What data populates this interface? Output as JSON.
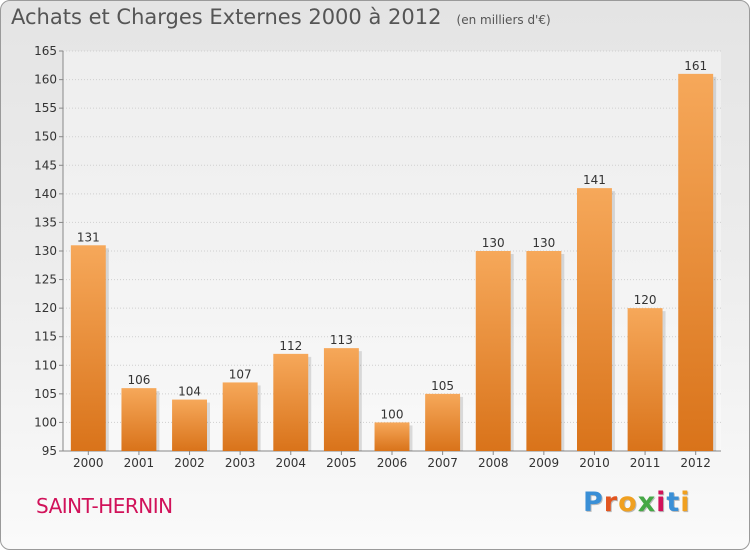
{
  "title": "Achats et Charges Externes 2000 à 2012",
  "unit_note": "(en milliers d'€)",
  "commune": "SAINT-HERNIN",
  "logo": {
    "text": "Proxiti",
    "letter_colors": [
      "#3a8fd6",
      "#e2551f",
      "#f0a020",
      "#46a846",
      "#d1125a",
      "#3a8fd6",
      "#f0a020"
    ]
  },
  "chart_data": {
    "type": "bar",
    "categories": [
      "2000",
      "2001",
      "2002",
      "2003",
      "2004",
      "2005",
      "2006",
      "2007",
      "2008",
      "2009",
      "2010",
      "2011",
      "2012"
    ],
    "values": [
      131,
      106,
      104,
      107,
      112,
      113,
      100,
      105,
      130,
      130,
      141,
      120,
      161
    ],
    "ylim": [
      95,
      165
    ],
    "yticks": [
      95,
      100,
      105,
      110,
      115,
      120,
      125,
      130,
      135,
      140,
      145,
      150,
      155,
      160,
      165
    ],
    "grid": true,
    "bar_color_top": "#f6a85a",
    "bar_color_bottom": "#d9731a"
  }
}
